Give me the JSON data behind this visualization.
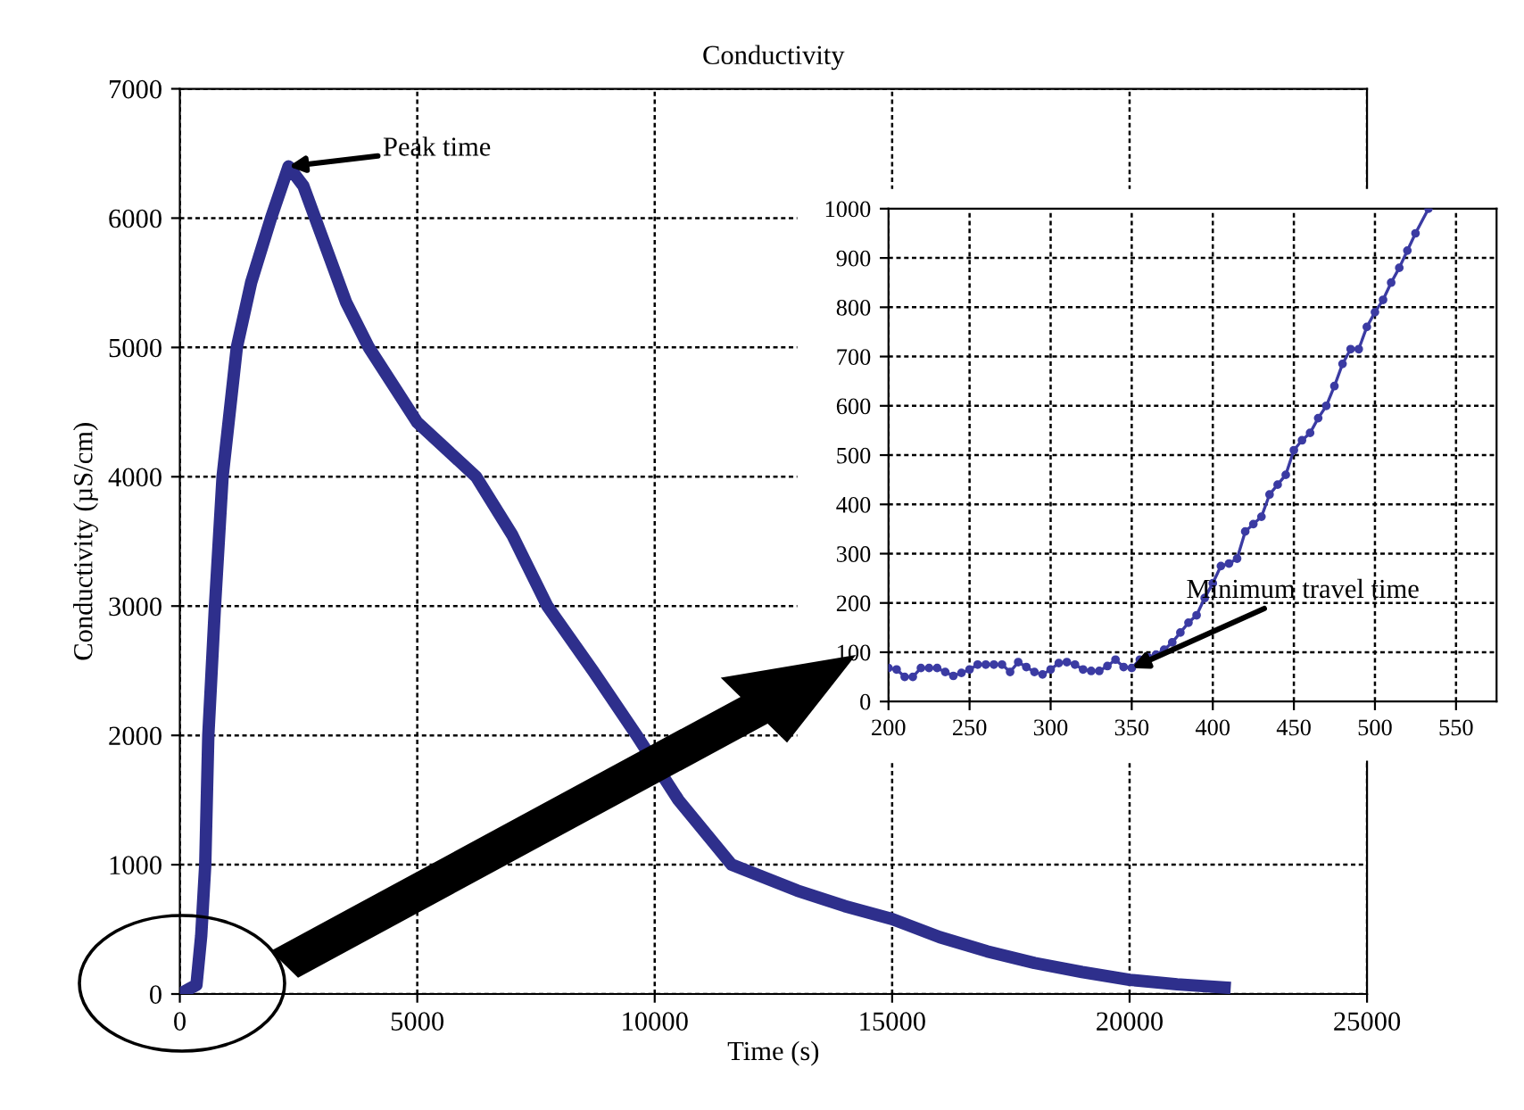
{
  "chart_data": [
    {
      "type": "line",
      "title": "Conductivity",
      "xlabel": "Time (s)",
      "ylabel": "Conductivity (µS/cm)",
      "series": [
        {
          "color": "#2e2f8c",
          "x": [
            0,
            200,
            350,
            450,
            535,
            600,
            740,
            900,
            1200,
            1500,
            1920,
            2290,
            2600,
            3000,
            3500,
            3980,
            5000,
            6240,
            7000,
            7740,
            8700,
            9620,
            10500,
            11620,
            13000,
            14000,
            15000,
            16000,
            17000,
            18000,
            19000,
            20000,
            21000,
            22000
          ],
          "values": [
            0,
            40,
            70,
            450,
            1000,
            2000,
            3000,
            4000,
            5000,
            5500,
            6000,
            6400,
            6250,
            5850,
            5350,
            5000,
            4420,
            4000,
            3550,
            3000,
            2500,
            2000,
            1500,
            1000,
            800,
            680,
            580,
            440,
            330,
            240,
            170,
            110,
            75,
            50
          ]
        }
      ],
      "xlim": [
        0,
        25000
      ],
      "xticks": [
        0,
        5000,
        10000,
        15000,
        20000,
        25000
      ],
      "ylim": [
        0,
        7000
      ],
      "yticks": [
        0,
        1000,
        2000,
        3000,
        4000,
        5000,
        6000,
        7000
      ],
      "grid": true,
      "line_style": "solid",
      "marker": "none",
      "annotations": [
        {
          "text": "Peak time",
          "x": 2290,
          "y": 6400
        }
      ]
    },
    {
      "type": "line",
      "series": [
        {
          "color": "#3b3ba3",
          "x": [
            200,
            205,
            210,
            215,
            220,
            225,
            230,
            235,
            240,
            245,
            250,
            255,
            260,
            265,
            270,
            275,
            280,
            285,
            290,
            295,
            300,
            305,
            310,
            315,
            320,
            325,
            330,
            335,
            340,
            345,
            350,
            355,
            360,
            365,
            370,
            375,
            380,
            385,
            390,
            395,
            400,
            405,
            410,
            415,
            420,
            425,
            430,
            435,
            440,
            445,
            450,
            455,
            460,
            465,
            470,
            475,
            480,
            485,
            490,
            495,
            500,
            505,
            510,
            515,
            520,
            525,
            533
          ],
          "values": [
            68,
            65,
            50,
            50,
            68,
            68,
            68,
            60,
            52,
            58,
            65,
            75,
            75,
            75,
            75,
            60,
            80,
            70,
            60,
            55,
            65,
            78,
            80,
            75,
            65,
            62,
            62,
            72,
            85,
            70,
            68,
            85,
            90,
            95,
            105,
            120,
            140,
            160,
            175,
            210,
            240,
            275,
            280,
            290,
            345,
            360,
            375,
            420,
            440,
            460,
            510,
            530,
            545,
            575,
            600,
            640,
            685,
            715,
            715,
            760,
            790,
            815,
            850,
            880,
            915,
            950,
            1000
          ]
        }
      ],
      "xlim": [
        200,
        575
      ],
      "xticks": [
        200,
        250,
        300,
        350,
        400,
        450,
        500,
        550
      ],
      "ylim": [
        0,
        1000
      ],
      "yticks": [
        0,
        100,
        200,
        300,
        400,
        500,
        600,
        700,
        800,
        900,
        1000
      ],
      "grid": true,
      "line_style": "solid",
      "marker": "circle",
      "annotations": [
        {
          "text": "Minimum travel time",
          "x": 350,
          "y": 68
        }
      ]
    }
  ]
}
